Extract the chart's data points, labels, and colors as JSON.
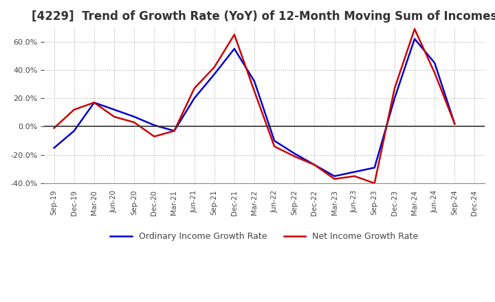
{
  "title": "[4229]  Trend of Growth Rate (YoY) of 12-Month Moving Sum of Incomes",
  "x_labels": [
    "Sep-19",
    "Dec-19",
    "Mar-20",
    "Jun-20",
    "Sep-20",
    "Dec-20",
    "Mar-21",
    "Jun-21",
    "Sep-21",
    "Dec-21",
    "Mar-22",
    "Jun-22",
    "Sep-22",
    "Dec-22",
    "Mar-23",
    "Jun-23",
    "Sep-23",
    "Dec-23",
    "Mar-24",
    "Jun-24",
    "Sep-24",
    "Dec-24"
  ],
  "ordinary_income": [
    -15.0,
    -3.0,
    17.0,
    12.0,
    7.0,
    1.0,
    -3.0,
    20.0,
    37.0,
    55.0,
    32.0,
    -10.0,
    -19.0,
    -27.0,
    -35.0,
    -32.0,
    -29.0,
    20.0,
    62.0,
    45.0,
    2.0,
    null
  ],
  "net_income": [
    -1.0,
    12.0,
    17.0,
    7.0,
    3.0,
    -7.0,
    -3.0,
    27.0,
    42.0,
    65.0,
    25.0,
    -14.0,
    -21.0,
    -27.0,
    -37.0,
    -35.0,
    -40.0,
    27.0,
    69.0,
    38.0,
    2.0,
    null
  ],
  "ordinary_color": "#0000cc",
  "net_color": "#cc0000",
  "ylim": [
    -40,
    70
  ],
  "yticks": [
    -40,
    -20,
    0,
    20,
    40,
    60
  ],
  "background_color": "#ffffff",
  "grid_color": "#aaaaaa",
  "title_fontsize": 12,
  "legend_ordinary": "Ordinary Income Growth Rate",
  "legend_net": "Net Income Growth Rate"
}
